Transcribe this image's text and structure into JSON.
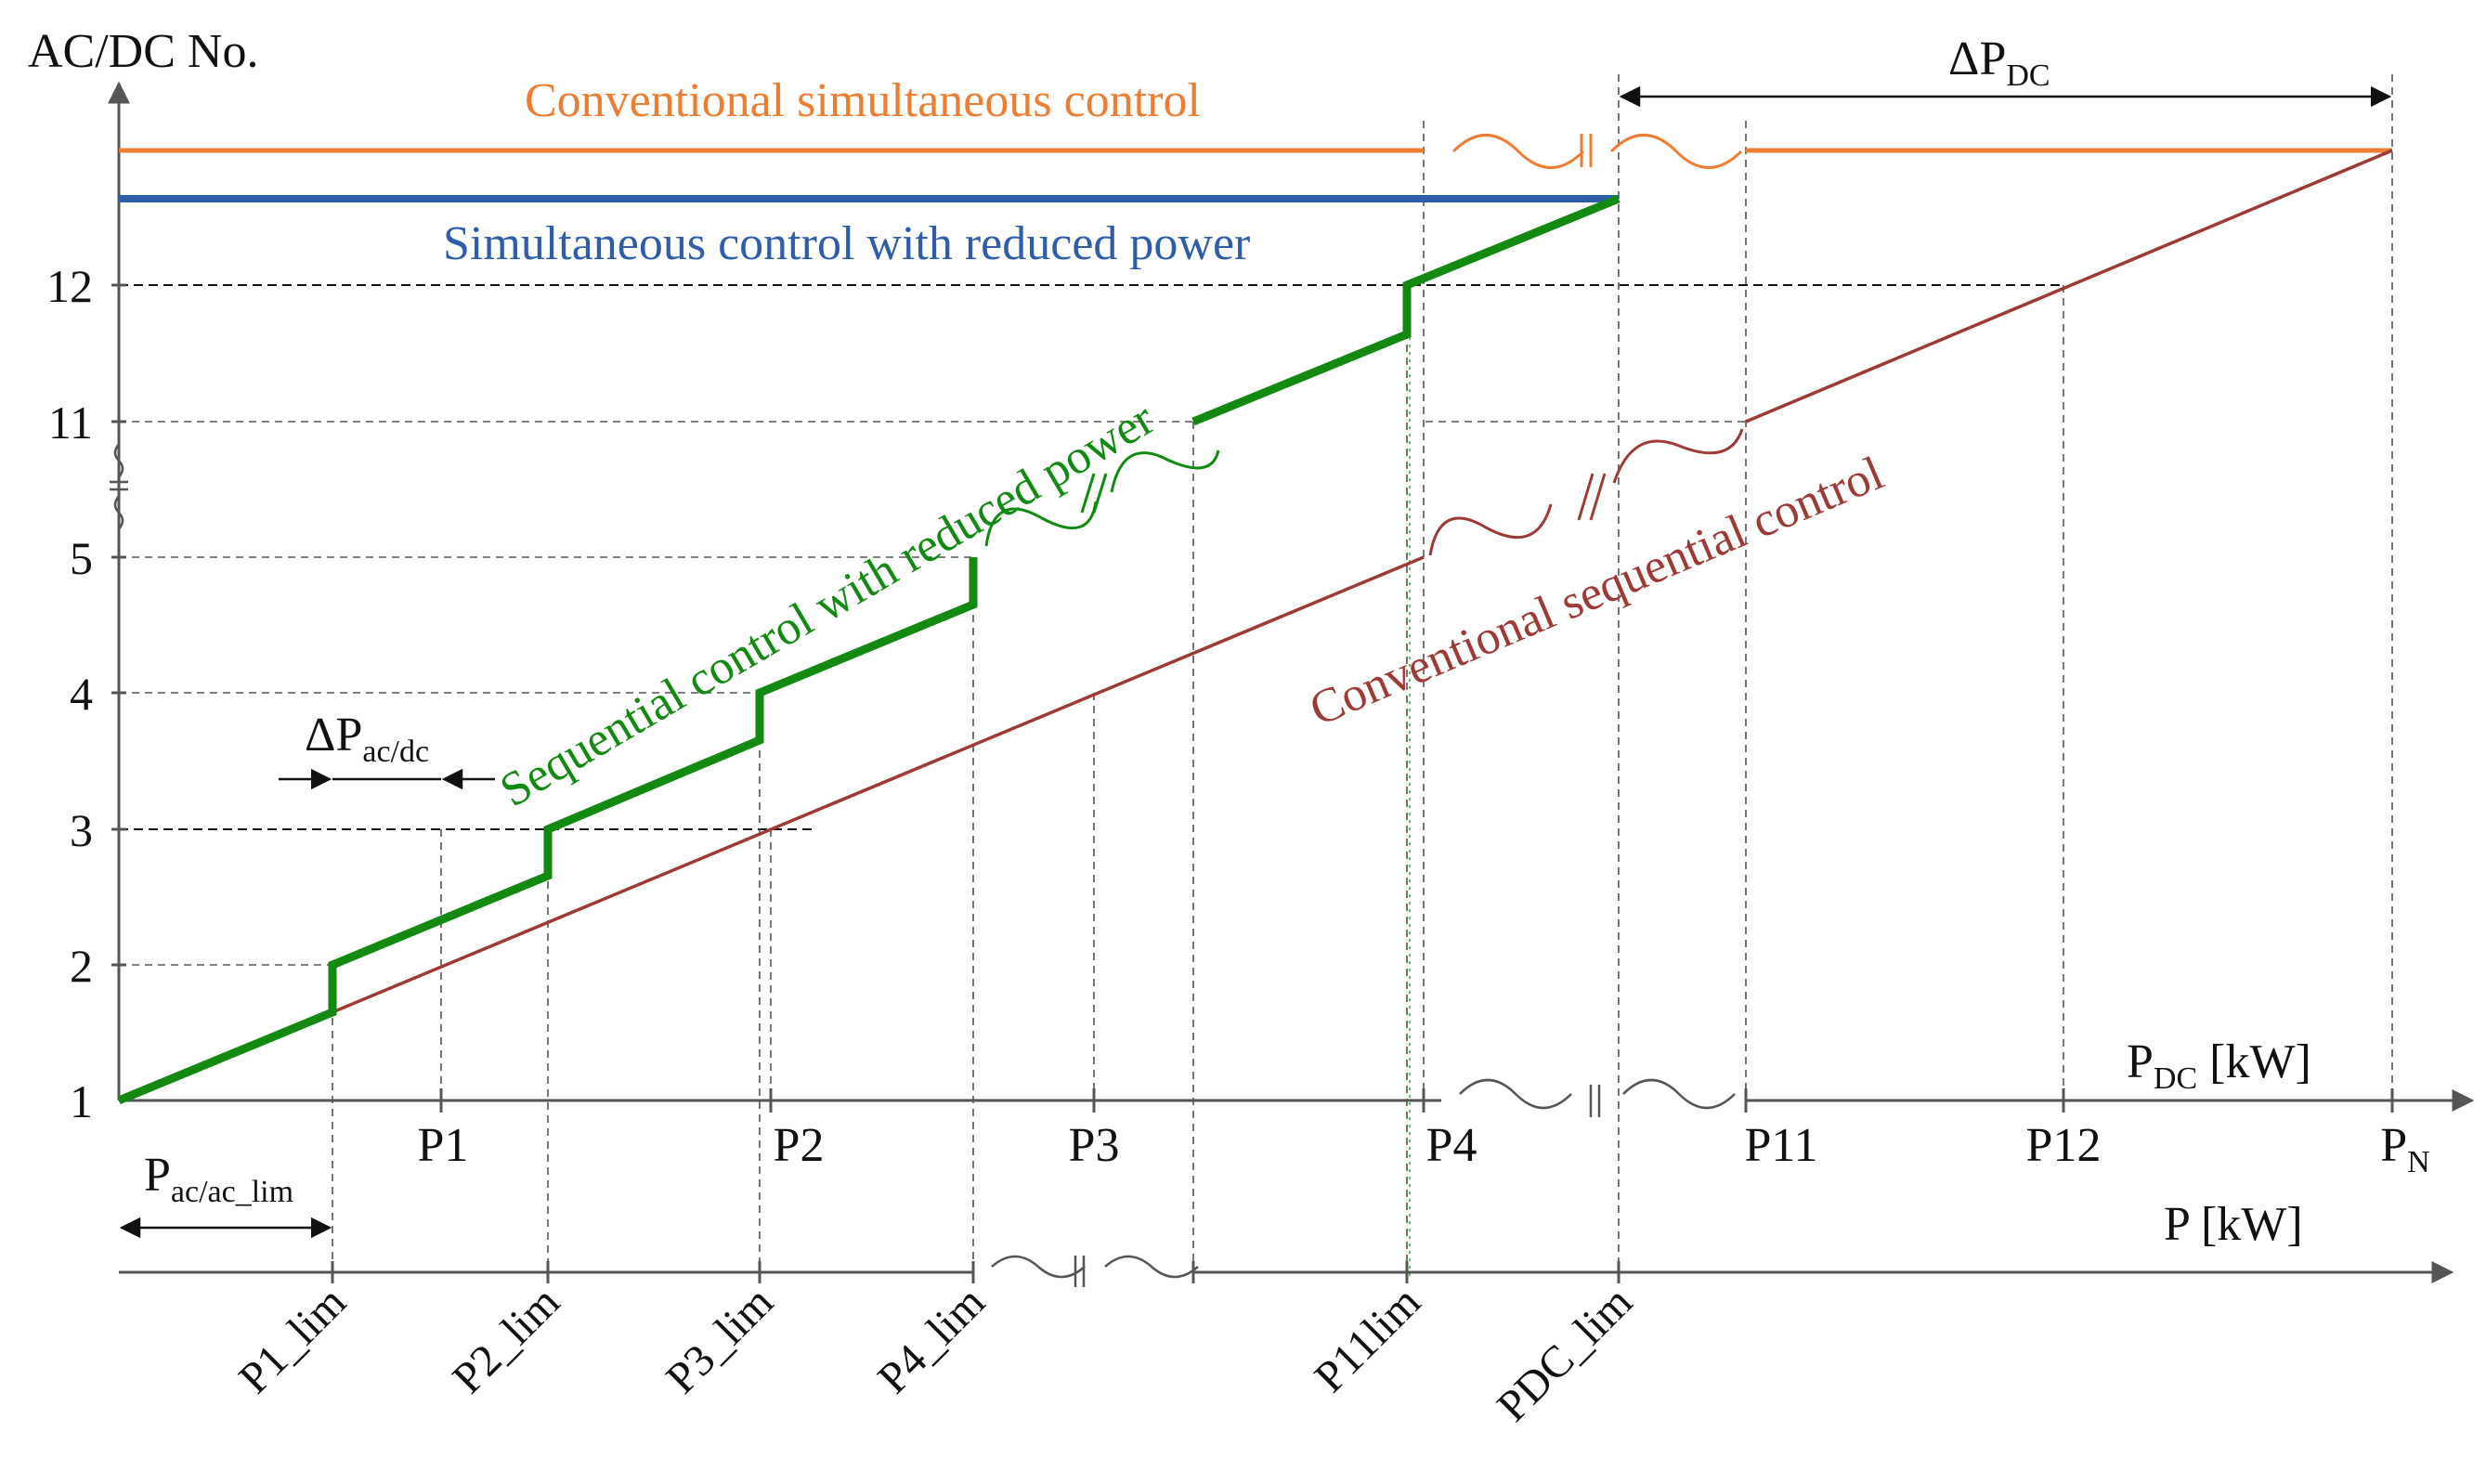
{
  "y_axis": {
    "title": "AC/DC No.",
    "ticks": [
      "1",
      "2",
      "3",
      "4",
      "5",
      "11",
      "12"
    ]
  },
  "upper_axis": {
    "title": "P",
    "title_sub": "DC",
    "title_unit": " [kW]",
    "ticks": [
      "P1",
      "P2",
      "P3",
      "P4",
      "P11",
      "P12"
    ],
    "pn": "P",
    "pn_sub": "N"
  },
  "lower_axis": {
    "title": "P [kW]",
    "ticks": [
      "P1_lim",
      "P2_lim",
      "P3_lim",
      "P4_lim",
      "P11lim",
      "PDC_lim"
    ]
  },
  "annotations": {
    "delta_pdc": "ΔP",
    "delta_pdc_sub": "DC",
    "delta_pacdc": "ΔP",
    "delta_pacdc_sub": "ac/dc",
    "p_acac_lim": "P",
    "p_acac_lim_sub": "ac/ac_lim"
  },
  "curves": {
    "conv_simultaneous": {
      "label": "Conventional simultaneous control",
      "color": "#ED7D31"
    },
    "simultaneous_reduced": {
      "label": "Simultaneous control with reduced power",
      "color": "#2E5EAA"
    },
    "sequential_reduced": {
      "label": "Sequential control with reduced power",
      "color": "#128A12"
    },
    "conv_sequential": {
      "label": "Conventional sequential control",
      "color": "#9E3A36"
    }
  },
  "colors": {
    "axis": "#555555",
    "text": "#111111",
    "break_symbol": "#555555"
  }
}
